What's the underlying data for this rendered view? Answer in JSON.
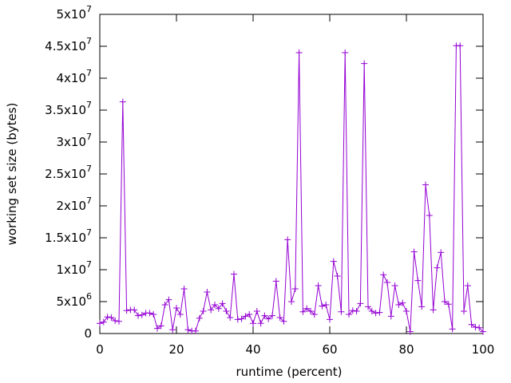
{
  "chart_data": {
    "type": "line",
    "xlabel": "runtime (percent)",
    "ylabel": "working set size (bytes)",
    "xlim": [
      0,
      100
    ],
    "xticks": [
      0,
      20,
      40,
      60,
      80,
      100
    ],
    "ylim": [
      0,
      50000000
    ],
    "yticks": [
      0,
      {
        "value": 5000000,
        "label": "5x10",
        "exp": "6"
      },
      {
        "value": 10000000,
        "label": "1x10",
        "exp": "7"
      },
      {
        "value": 15000000,
        "label": "1.5x10",
        "exp": "7"
      },
      {
        "value": 20000000,
        "label": "2x10",
        "exp": "7"
      },
      {
        "value": 25000000,
        "label": "2.5x10",
        "exp": "7"
      },
      {
        "value": 30000000,
        "label": "3x10",
        "exp": "7"
      },
      {
        "value": 35000000,
        "label": "3.5x10",
        "exp": "7"
      },
      {
        "value": 40000000,
        "label": "4x10",
        "exp": "7"
      },
      {
        "value": 45000000,
        "label": "4.5x10",
        "exp": "7"
      },
      {
        "value": 50000000,
        "label": "5x10",
        "exp": "7"
      }
    ],
    "color": "#9400d3",
    "x": [
      0,
      1,
      2,
      3,
      4,
      5,
      6,
      7,
      8,
      9,
      10,
      11,
      12,
      13,
      14,
      15,
      16,
      17,
      18,
      19,
      20,
      21,
      22,
      23,
      24,
      25,
      26,
      27,
      28,
      29,
      30,
      31,
      32,
      33,
      34,
      35,
      36,
      37,
      38,
      39,
      40,
      41,
      42,
      43,
      44,
      45,
      46,
      47,
      48,
      49,
      50,
      51,
      52,
      53,
      54,
      55,
      56,
      57,
      58,
      59,
      60,
      61,
      62,
      63,
      64,
      65,
      66,
      67,
      68,
      69,
      70,
      71,
      72,
      73,
      74,
      75,
      76,
      77,
      78,
      79,
      80,
      81,
      82,
      83,
      84,
      85,
      86,
      87,
      88,
      89,
      90,
      91,
      92,
      93,
      94,
      95,
      96,
      97,
      98,
      99,
      100
    ],
    "values": [
      1600000,
      1800000,
      2600000,
      2500000,
      2000000,
      1900000,
      36300000,
      3600000,
      3700000,
      3700000,
      2800000,
      2900000,
      3200000,
      3200000,
      3000000,
      800000,
      1200000,
      4500000,
      5300000,
      600000,
      4000000,
      3000000,
      7000000,
      600000,
      400000,
      400000,
      2400000,
      3500000,
      6500000,
      3700000,
      4500000,
      3900000,
      4700000,
      3500000,
      2500000,
      9300000,
      2200000,
      2300000,
      2700000,
      3000000,
      1600000,
      3500000,
      1600000,
      2800000,
      2300000,
      2800000,
      8200000,
      2500000,
      1900000,
      14700000,
      5000000,
      7000000,
      44000000,
      3400000,
      3900000,
      3500000,
      3000000,
      7500000,
      4300000,
      4500000,
      2200000,
      11300000,
      9000000,
      3400000,
      44000000,
      3000000,
      3600000,
      3500000,
      4700000,
      42300000,
      4200000,
      3500000,
      3200000,
      3300000,
      9200000,
      8000000,
      2700000,
      7500000,
      4500000,
      4800000,
      3500000,
      300000,
      12800000,
      8300000,
      4200000,
      23300000,
      18500000,
      3700000,
      10300000,
      12700000,
      5000000,
      4600000,
      700000,
      45100000,
      45100000,
      3500000,
      7500000,
      1400000,
      1000000,
      900000,
      300000
    ]
  }
}
